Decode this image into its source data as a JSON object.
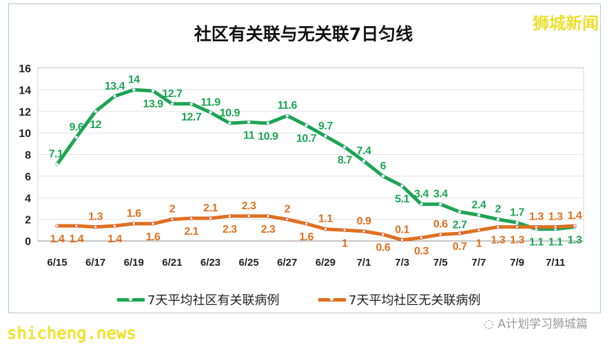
{
  "brand": "狮城新闻",
  "watermark": "shicheng.news",
  "wechat_source": "A计划学习狮城篇",
  "colors": {
    "green": "#1ba552",
    "orange": "#e0701e",
    "grid": "#e2e2e2"
  },
  "chart_data": {
    "type": "line",
    "title": "社区有关联与无关联7日匀线",
    "ylim": [
      0,
      16
    ],
    "yticks": [
      0,
      2,
      4,
      6,
      8,
      10,
      12,
      14,
      16
    ],
    "grid": true,
    "legend_position": "bottom",
    "x": [
      "6/15",
      "6/16",
      "6/17",
      "6/18",
      "6/19",
      "6/20",
      "6/21",
      "6/22",
      "6/23",
      "6/24",
      "6/25",
      "6/26",
      "6/27",
      "6/28",
      "6/29",
      "6/30",
      "7/1",
      "7/2",
      "7/3",
      "7/4",
      "7/5",
      "7/6",
      "7/7",
      "7/8",
      "7/9",
      "7/10",
      "7/11",
      "7/12"
    ],
    "xtick_labels": [
      "6/15",
      "6/17",
      "6/19",
      "6/21",
      "6/23",
      "6/25",
      "6/27",
      "6/29",
      "7/1",
      "7/3",
      "7/5",
      "7/7",
      "7/9",
      "7/11"
    ],
    "series": [
      {
        "name": "7天平均社区有关联病例",
        "color": "#1ba552",
        "values": [
          7.1,
          9.6,
          12,
          13.4,
          14,
          13.9,
          12.7,
          12.7,
          11.9,
          10.9,
          11,
          10.9,
          11.6,
          10.7,
          9.7,
          8.7,
          7.4,
          6,
          5.1,
          3.4,
          3.4,
          2.7,
          2.4,
          2,
          1.7,
          1.1,
          1.1,
          1.3
        ]
      },
      {
        "name": "7天平均社区无关联病例",
        "color": "#e0701e",
        "values": [
          1.4,
          1.4,
          1.3,
          1.4,
          1.6,
          1.6,
          2,
          2.1,
          2.1,
          2.3,
          2.3,
          2.3,
          2,
          1.6,
          1.1,
          1,
          0.9,
          0.6,
          0.1,
          0.3,
          0.6,
          0.7,
          1,
          1.3,
          1.3,
          1.3,
          1.3,
          1.4
        ]
      }
    ]
  }
}
